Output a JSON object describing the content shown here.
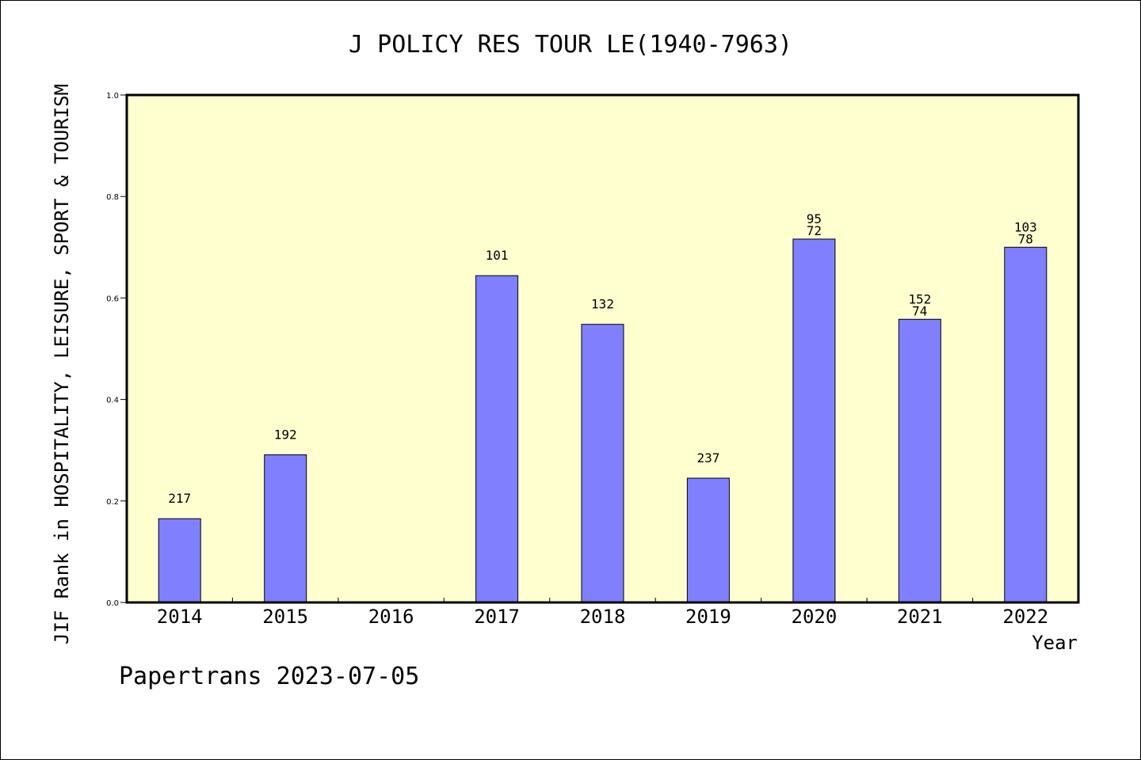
{
  "colors": {
    "plot_background": "#ffffd0",
    "bar_fill": "#8080ff",
    "bar_stroke": "#000000",
    "axis": "#000000"
  },
  "chart_data": {
    "type": "bar",
    "title": "J POLICY RES TOUR LE(1940-7963)",
    "xlabel": "Year",
    "ylabel": "JIF Rank in HOSPITALITY, LEISURE, SPORT & TOURISM",
    "ylim": [
      0,
      1.0
    ],
    "yticks": [
      "0.0",
      "0.2",
      "0.4",
      "0.6",
      "0.8",
      "1.0"
    ],
    "grid": false,
    "categories": [
      "2014",
      "2015",
      "2016",
      "2017",
      "2018",
      "2019",
      "2020",
      "2021",
      "2022"
    ],
    "values": [
      0.165,
      0.291,
      null,
      0.644,
      0.548,
      0.245,
      0.716,
      0.558,
      0.7
    ],
    "data_labels": [
      [
        "217"
      ],
      [
        "192"
      ],
      [],
      [
        "101"
      ],
      [
        "132"
      ],
      [
        "237"
      ],
      [
        "95",
        "72"
      ],
      [
        "152",
        "74"
      ],
      [
        "103",
        "78"
      ]
    ]
  },
  "footer": "Papertrans 2023-07-05"
}
